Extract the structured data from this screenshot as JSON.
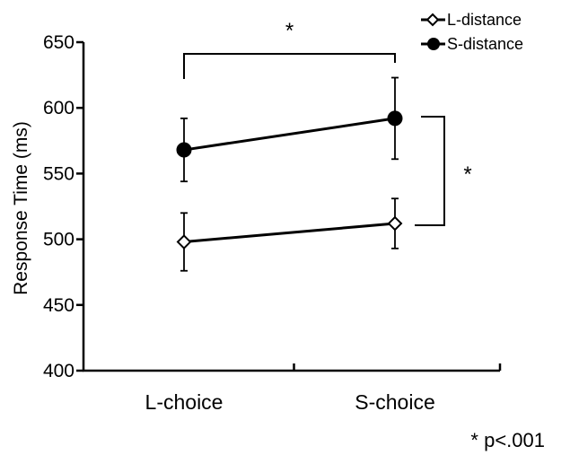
{
  "chart_data": {
    "type": "line",
    "ylabel": "Response Time (ms)",
    "ylim": [
      400,
      650
    ],
    "yticks": [
      400,
      450,
      500,
      550,
      600,
      650
    ],
    "categories": [
      "L-choice",
      "S-choice"
    ],
    "series": [
      {
        "name": "L-distance",
        "marker": "open-diamond",
        "values": [
          498,
          512
        ],
        "errors": [
          22,
          19
        ]
      },
      {
        "name": "S-distance",
        "marker": "filled-circle",
        "values": [
          568,
          592
        ],
        "errors": [
          24,
          31
        ]
      }
    ],
    "legend_position": "top-right",
    "annotations": {
      "bracket_star": "*",
      "side_star": "*",
      "footnote": "* p<.001"
    },
    "colors": {
      "line": "#000000",
      "background": "#ffffff"
    }
  }
}
